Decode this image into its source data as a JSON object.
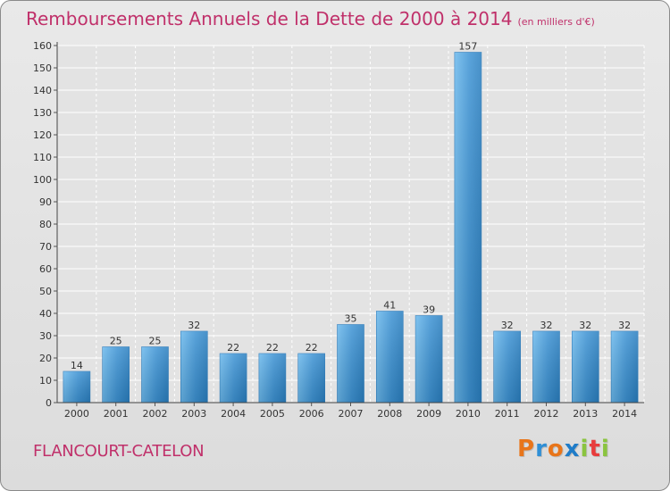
{
  "title": "Remboursements Annuels de la Dette de 2000 à 2014",
  "unit_note": "(en milliers d'€)",
  "commune": "FLANCOURT-CATELON",
  "logo_text": "Proxiti",
  "colors": {
    "title": "#c0306a",
    "bar_light": "#5aaee6",
    "bar_dark": "#2277b8",
    "background": "#e3e3e3",
    "grid": "#ffffff",
    "logo": [
      "#e8751a",
      "#2f8fd6",
      "#e8751a",
      "#1f7cc8",
      "#8ac43f",
      "#e83c3c",
      "#8ac43f"
    ]
  },
  "chart_data": {
    "type": "bar",
    "title": "Remboursements Annuels de la Dette de 2000 à 2014",
    "xlabel": "",
    "ylabel": "",
    "categories": [
      "2000",
      "2001",
      "2002",
      "2003",
      "2004",
      "2005",
      "2006",
      "2007",
      "2008",
      "2009",
      "2010",
      "2011",
      "2012",
      "2013",
      "2014"
    ],
    "values": [
      14,
      25,
      25,
      32,
      22,
      22,
      22,
      35,
      41,
      39,
      157,
      32,
      32,
      32,
      32
    ],
    "data_labels": [
      "14",
      "25",
      "25",
      "32",
      "22",
      "22",
      "22",
      "35",
      "41",
      "39",
      "157",
      "32",
      "32",
      "32",
      "32"
    ],
    "ylim": [
      0,
      160
    ],
    "yticks": [
      0,
      10,
      20,
      30,
      40,
      50,
      60,
      70,
      80,
      90,
      100,
      110,
      120,
      130,
      140,
      150,
      160
    ],
    "grid": true
  }
}
